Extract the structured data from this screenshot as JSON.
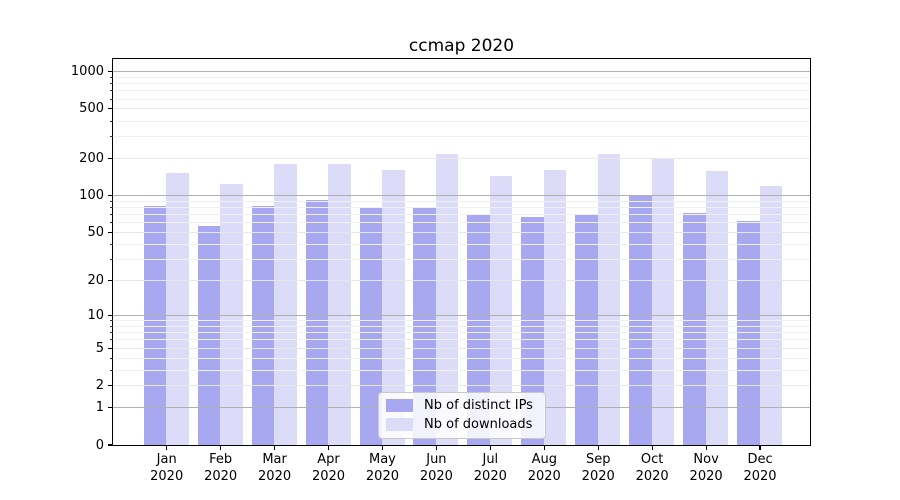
{
  "figure": {
    "title": "ccmap 2020"
  },
  "legend": {
    "items": [
      {
        "label": "Nb of distinct IPs",
        "color": "#a8a8f0"
      },
      {
        "label": "Nb of downloads",
        "color": "#dcdcf8"
      }
    ]
  },
  "colors": {
    "ips_bar": "#a8a8f0",
    "downloads_bar": "#dcdcf8",
    "major_grid": "#b0b0b0",
    "labeled_grid": "#e7e7e7",
    "minor_grid": "#f1f1f1",
    "spine": "#000000",
    "legend_border": "#c9c9c9"
  },
  "chart_data": {
    "type": "bar",
    "title": "ccmap 2020",
    "categories": [
      "Jan 2020",
      "Feb 2020",
      "Mar 2020",
      "Apr 2020",
      "May 2020",
      "Jun 2020",
      "Jul 2020",
      "Aug 2020",
      "Sep 2020",
      "Oct 2020",
      "Nov 2020",
      "Dec 2020"
    ],
    "series": [
      {
        "name": "Nb of distinct IPs",
        "color": "#a8a8f0",
        "values": [
          81,
          56,
          82,
          91,
          80,
          80,
          70,
          66,
          69,
          100,
          72,
          61
        ]
      },
      {
        "name": "Nb of downloads",
        "color": "#dcdcf8",
        "values": [
          150,
          123,
          178,
          178,
          160,
          215,
          142,
          160,
          216,
          194,
          158,
          118
        ]
      }
    ],
    "xlabel": "",
    "ylabel": "",
    "yscale": "log1p",
    "y_ticks": [
      0,
      1,
      2,
      5,
      10,
      20,
      50,
      100,
      200,
      500,
      1000
    ],
    "y_major_gridlines": [
      1,
      10,
      100,
      1000
    ],
    "y_minor_ticks": [
      3,
      4,
      6,
      7,
      8,
      9,
      30,
      40,
      60,
      70,
      80,
      90,
      300,
      400,
      600,
      700,
      800,
      900
    ],
    "ylim": [
      0,
      1260
    ],
    "grid": true,
    "grid_above_bars": true,
    "legend_position": "lower-center-inside"
  }
}
